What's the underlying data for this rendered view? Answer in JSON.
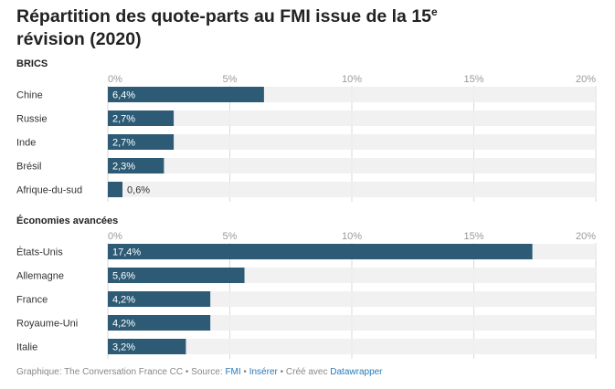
{
  "title": {
    "main": "Répartition des quote-parts au FMI issue de la 15",
    "sup": "e",
    "line2": "révision (2020)"
  },
  "colors": {
    "bar": "#2d5b75",
    "track": "#efefef",
    "grid": "#d9d9d9"
  },
  "chart_data": [
    {
      "type": "bar",
      "orientation": "horizontal",
      "title": "BRICS",
      "categories": [
        "Chine",
        "Russie",
        "Inde",
        "Brésil",
        "Afrique-du-sud"
      ],
      "values": [
        6.4,
        2.7,
        2.7,
        2.3,
        0.6
      ],
      "value_labels": [
        "6,4%",
        "2,7%",
        "2,7%",
        "2,3%",
        "0,6%"
      ],
      "xlim": [
        0,
        20
      ],
      "ticks": [
        "0%",
        "5%",
        "10%",
        "15%",
        "20%"
      ],
      "grid": true
    },
    {
      "type": "bar",
      "orientation": "horizontal",
      "title": "Économies avancées",
      "categories": [
        "États-Unis",
        "Allemagne",
        "France",
        "Royaume-Uni",
        "Italie"
      ],
      "values": [
        17.4,
        5.6,
        4.2,
        4.2,
        3.2
      ],
      "value_labels": [
        "17,4%",
        "5,6%",
        "4,2%",
        "4,2%",
        "3,2%"
      ],
      "xlim": [
        0,
        20
      ],
      "ticks": [
        "0%",
        "5%",
        "10%",
        "15%",
        "20%"
      ],
      "grid": true
    }
  ],
  "footer": {
    "prefix": "Graphique: The Conversation France CC • Source: ",
    "source": "FMI",
    "sep1": " • ",
    "insert": "Insérer",
    "sep2": " • Créé avec ",
    "tool": "Datawrapper"
  }
}
